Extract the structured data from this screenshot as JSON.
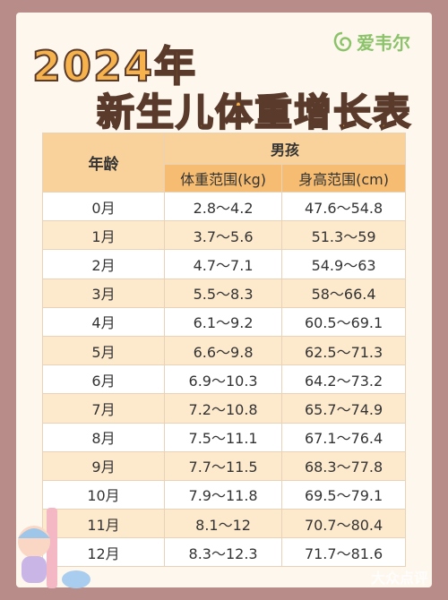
{
  "header": {
    "year": "2024年",
    "title": "新生儿体重增长表",
    "logo": "爱韦尔"
  },
  "table": {
    "age_header": "年龄",
    "group": "男孩",
    "columns": [
      "体重范围(kg)",
      "身高范围(cm)"
    ],
    "rows": [
      [
        "0月",
        "2.8～4.2",
        "47.6～54.8"
      ],
      [
        "1月",
        "3.7～5.6",
        "51.3～59"
      ],
      [
        "2月",
        "4.7～7.1",
        "54.9～63"
      ],
      [
        "3月",
        "5.5～8.3",
        "58～66.4"
      ],
      [
        "4月",
        "6.1～9.2",
        "60.5～69.1"
      ],
      [
        "5月",
        "6.6～9.8",
        "62.5～71.3"
      ],
      [
        "6月",
        "6.9～10.3",
        "64.2～73.2"
      ],
      [
        "7月",
        "7.2～10.8",
        "65.7～74.9"
      ],
      [
        "8月",
        "7.5～11.1",
        "67.1～76.4"
      ],
      [
        "9月",
        "7.7～11.5",
        "68.3～77.8"
      ],
      [
        "10月",
        "7.9～11.8",
        "69.5～79.1"
      ],
      [
        "11月",
        "8.1～12",
        "70.7～80.4"
      ],
      [
        "12月",
        "8.3～12.3",
        "71.7～81.6"
      ]
    ]
  },
  "watermark": "大众点评"
}
